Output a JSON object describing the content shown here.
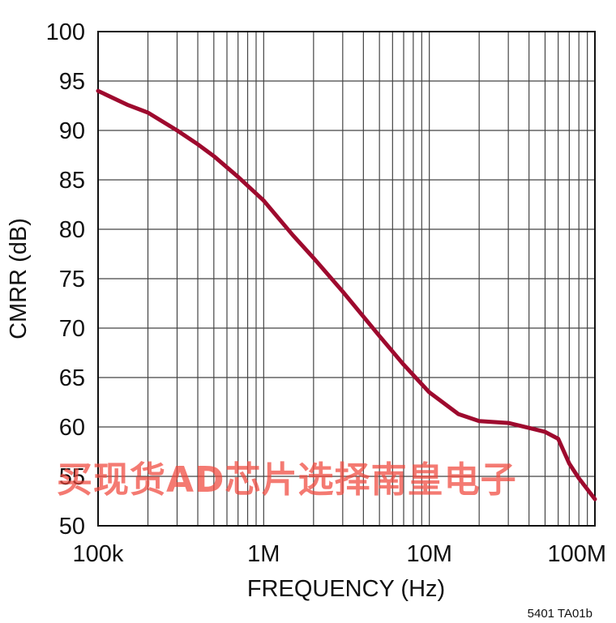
{
  "chart_data": {
    "type": "line",
    "xscale": "log",
    "xlabel": "FREQUENCY (Hz)",
    "ylabel": "CMRR (dB)",
    "xlim": [
      100000,
      100000000
    ],
    "ylim": [
      50,
      100
    ],
    "x_ticks": [
      {
        "value": 100000,
        "label": "100k"
      },
      {
        "value": 1000000,
        "label": "1M"
      },
      {
        "value": 10000000,
        "label": "10M"
      },
      {
        "value": 100000000,
        "label": "100M"
      }
    ],
    "y_ticks": [
      {
        "value": 100,
        "label": "100"
      },
      {
        "value": 95,
        "label": "95"
      },
      {
        "value": 90,
        "label": "90"
      },
      {
        "value": 85,
        "label": "85"
      },
      {
        "value": 80,
        "label": "80"
      },
      {
        "value": 75,
        "label": "75"
      },
      {
        "value": 70,
        "label": "70"
      },
      {
        "value": 65,
        "label": "65"
      },
      {
        "value": 60,
        "label": "60"
      },
      {
        "value": 55,
        "label": "55"
      },
      {
        "value": 50,
        "label": "50"
      }
    ],
    "grid": true,
    "series": [
      {
        "x": [
          100000,
          150000,
          200000,
          300000,
          400000,
          500000,
          700000,
          1000000,
          1500000,
          2000000,
          3000000,
          5000000,
          7000000,
          10000000,
          15000000,
          20000000,
          30000000,
          40000000,
          50000000,
          60000000,
          70000000,
          80000000,
          100000000
        ],
        "y": [
          94,
          92.6,
          91.8,
          90,
          88.6,
          87.4,
          85.3,
          82.9,
          79.4,
          77.1,
          73.7,
          69.2,
          66.3,
          63.5,
          61.3,
          60.6,
          60.4,
          59.9,
          59.5,
          58.8,
          56.3,
          54.8,
          52.7
        ]
      }
    ],
    "line_color": "#9e0a2e"
  },
  "figure_code": "5401 TA01b",
  "watermark": "买现货AD芯片选择南皇电子",
  "colors": {
    "grid": "#444444",
    "frame": "#111111",
    "watermark": "#f0463c"
  }
}
